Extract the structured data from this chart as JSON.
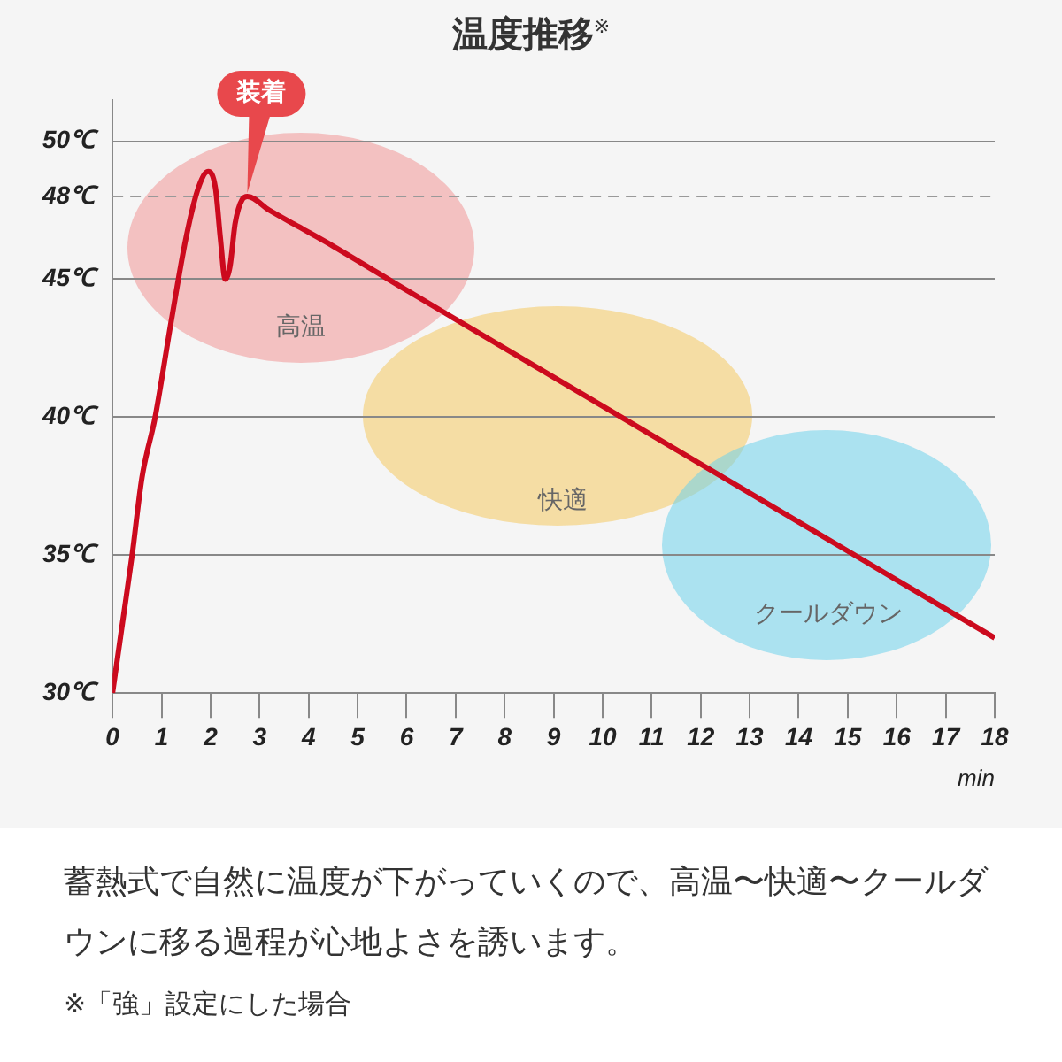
{
  "chart_data": {
    "type": "line",
    "title": "温度推移$^{※}$",
    "xlabel": "min",
    "x": [
      0,
      0.2,
      0.4,
      0.6,
      0.87,
      1.2,
      1.5,
      1.75,
      1.95,
      2.1,
      2.2,
      2.3,
      2.4,
      2.5,
      2.65,
      2.75,
      3.2,
      3.8,
      4.5,
      6,
      10,
      14,
      18
    ],
    "series": [
      {
        "color": "#cc0a1e",
        "values": [
          30,
          32.5,
          35,
          37.8,
          40,
          43.5,
          46.5,
          48.3,
          48.9,
          48.3,
          46.5,
          45,
          45.5,
          47,
          47.9,
          48,
          47.5,
          46.9,
          46.2,
          44.6,
          40.4,
          36.2,
          32
        ]
      }
    ],
    "xlim": [
      0,
      18
    ],
    "xticks": [
      0,
      1,
      2,
      3,
      4,
      5,
      6,
      7,
      8,
      9,
      10,
      11,
      12,
      13,
      14,
      15,
      16,
      17,
      18
    ],
    "ylim": [
      30,
      51.5
    ],
    "yticks": [
      {
        "value": 30,
        "label": "30℃"
      },
      {
        "value": 35,
        "label": "35℃"
      },
      {
        "value": 40,
        "label": "40℃"
      },
      {
        "value": 45,
        "label": "45℃"
      },
      {
        "value": 48,
        "label": "48℃"
      },
      {
        "value": 50,
        "label": "50℃"
      }
    ],
    "grid": "y",
    "legend": false,
    "line_style": "solid",
    "ref_lines": [
      {
        "axis": "y",
        "value": 48,
        "line_style": "dashed",
        "color": "#999999"
      }
    ],
    "annotations": [
      "高温",
      "快適",
      "クールダウン",
      {
        "text": "装着",
        "x": 2.75,
        "y": 48
      },
      "蓄熱式で自然に温度が下がっていくので、高温〜快適〜クールダウンに移る過程が心地よさを誘います。",
      "※「強」設定にした場合"
    ]
  }
}
